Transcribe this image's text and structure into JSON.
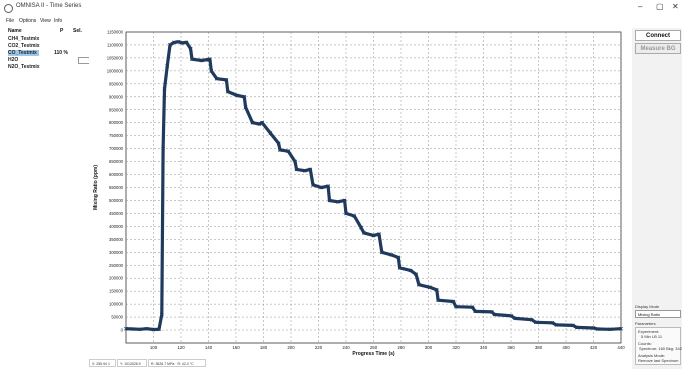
{
  "window": {
    "title": "OMNISA II - Time Series",
    "minimize_glyph": "–",
    "maximize_glyph": "▢",
    "close_glyph": "✕"
  },
  "menu": [
    "File",
    "Options",
    "View",
    "Info"
  ],
  "gas_panel": {
    "headers": {
      "name": "Name",
      "p": "P",
      "sel": "Sel."
    },
    "gases": [
      {
        "name": "CH4_Testmix",
        "value": "",
        "selected": false
      },
      {
        "name": "CO2_Testmix",
        "value": "",
        "selected": false
      },
      {
        "name": "CO_Testmix",
        "value": "110 %",
        "selected": true
      },
      {
        "name": "H2O",
        "value": "",
        "selected": false
      },
      {
        "name": "N2O_Testmix",
        "value": "",
        "selected": false
      }
    ]
  },
  "right_panel": {
    "connect_label": "Connect",
    "measure_label": "Measure BG",
    "display_mode_label": "Display Mode",
    "display_mode_value": "Mixing Ratio",
    "parameters_label": "Parameters",
    "experiment_label": "Experiment:",
    "experiment_value": "5 Min LB 11",
    "counts_label": "Counts:",
    "counts_value": "Spectrum: 160  Bkg: 342",
    "analysis_label": "Analysis Mode:",
    "analysis_value": "Remove last Spectrum"
  },
  "status": {
    "x": "X: 255.94 1",
    "y": "Y: 1013026.9",
    "z": "R: 3626.7 MPa · R: 42.4 °C"
  },
  "chart_data": {
    "type": "line",
    "xlabel": "Progress Time (s)",
    "ylabel": "Mixing Ratio (ppm)",
    "xlim": [
      80,
      440
    ],
    "ylim": [
      -50000,
      1150000
    ],
    "xticks": [
      100,
      120,
      140,
      160,
      180,
      200,
      220,
      240,
      260,
      280,
      300,
      320,
      340,
      360,
      380,
      400,
      420,
      440
    ],
    "yticks": [
      0,
      50000,
      100000,
      150000,
      200000,
      250000,
      300000,
      350000,
      400000,
      450000,
      500000,
      550000,
      600000,
      650000,
      700000,
      750000,
      800000,
      850000,
      900000,
      950000,
      1000000,
      1050000,
      1100000,
      1150000
    ],
    "grid": true,
    "line_color": "#1f3a5c",
    "series": [
      {
        "x": [
          80,
          85,
          90,
          95,
          100,
          104,
          106,
          107,
          108,
          110,
          112,
          115,
          118,
          121,
          124,
          127,
          128,
          135,
          141,
          142,
          146,
          153,
          154,
          161,
          166,
          167,
          172,
          177,
          179,
          185,
          191,
          192,
          198,
          203,
          204,
          210,
          214,
          216,
          222,
          227,
          228,
          234,
          239,
          240,
          246,
          251,
          253,
          260,
          264,
          266,
          273,
          278,
          279,
          287,
          291,
          293,
          301,
          306,
          307,
          318,
          320,
          332,
          334,
          346,
          348,
          360,
          363,
          375,
          378,
          390,
          393,
          405,
          408,
          420,
          423,
          432,
          440
        ],
        "y": [
          5000,
          4000,
          3000,
          5000,
          2000,
          3000,
          60000,
          700000,
          930000,
          1020000,
          1100000,
          1110000,
          1112000,
          1108000,
          1110000,
          1085000,
          1045000,
          1040000,
          1045000,
          1000000,
          970000,
          965000,
          920000,
          905000,
          900000,
          860000,
          800000,
          795000,
          800000,
          760000,
          720000,
          695000,
          690000,
          650000,
          620000,
          615000,
          620000,
          560000,
          550000,
          555000,
          500000,
          495000,
          500000,
          450000,
          440000,
          395000,
          375000,
          365000,
          370000,
          300000,
          290000,
          280000,
          240000,
          230000,
          215000,
          175000,
          165000,
          155000,
          115000,
          110000,
          90000,
          88000,
          72000,
          70000,
          60000,
          55000,
          45000,
          40000,
          30000,
          28000,
          20000,
          18000,
          10000,
          8000,
          4000,
          3000,
          5000
        ]
      }
    ]
  }
}
